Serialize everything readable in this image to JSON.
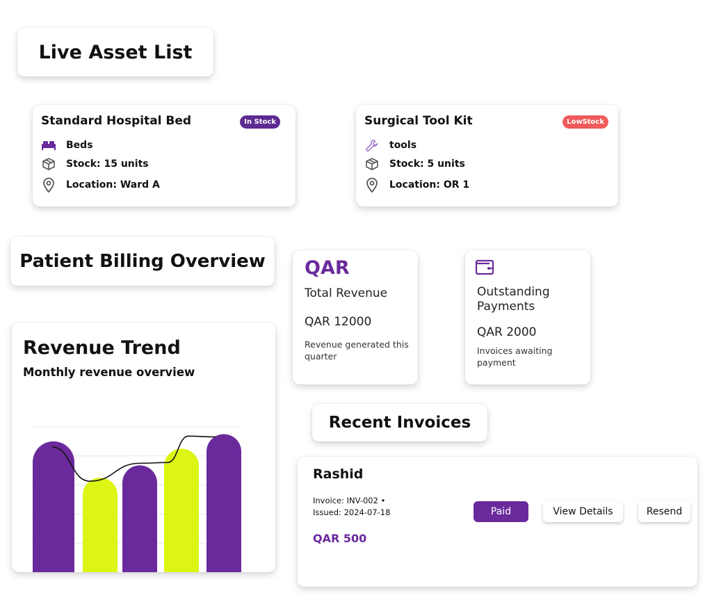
{
  "headings": {
    "live_asset_list": "Live Asset List",
    "patient_billing": "Patient Billing Overview",
    "recent_invoices": "Recent Invoices"
  },
  "assets": [
    {
      "name": "Standard Hospital Bed",
      "status": "In Stock",
      "status_color": "#5d2a91",
      "category": "Beds",
      "category_icon": "bed-icon",
      "stock": "Stock: 15 units",
      "location": "Location: Ward A"
    },
    {
      "name": "Surgical Tool Kit",
      "status": "LowStock",
      "status_color": "#ef5a5a",
      "category": "tools",
      "category_icon": "wrench-icon",
      "stock": "Stock: 5 units",
      "location": "Location: OR 1"
    }
  ],
  "stats": {
    "revenue": {
      "currency": "QAR",
      "label": "Total Revenue",
      "amount": "QAR 12000",
      "description": "Revenue generated this quarter"
    },
    "outstanding": {
      "icon": "wallet-icon",
      "label": "Outstanding Payments",
      "amount": "QAR 2000",
      "description": "Invoices awaiting payment"
    }
  },
  "chart": {
    "title": "Revenue Trend",
    "subtitle": "Monthly revenue overview"
  },
  "chart_data": {
    "type": "bar",
    "categories": [
      "",
      "",
      "",
      "",
      ""
    ],
    "values": [
      180,
      130,
      147,
      170,
      190
    ],
    "bar_colors": [
      "#6a2a9c",
      "#dcf514",
      "#6a2a9c",
      "#dcf514",
      "#6a2a9c"
    ],
    "trend_line": true,
    "title": "Revenue Trend",
    "subtitle": "Monthly revenue overview",
    "xlabel": "",
    "ylabel": "",
    "grid": true
  },
  "invoice": {
    "name": "Rashid",
    "invoice_line": "Invoice: INV-002 •",
    "issued_line": "Issued: 2024-07-18",
    "amount": "QAR 500",
    "status_button": "Paid",
    "view_button": "View Details",
    "resend_button": "Resend"
  },
  "colors": {
    "accent": "#6a2a9c",
    "lime": "#dcf514",
    "low_stock": "#ef5a5a"
  }
}
